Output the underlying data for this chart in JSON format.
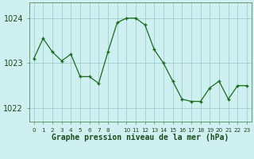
{
  "hours": [
    0,
    1,
    2,
    3,
    4,
    5,
    6,
    7,
    8,
    9,
    10,
    11,
    12,
    13,
    14,
    15,
    16,
    17,
    18,
    19,
    20,
    21,
    22,
    23
  ],
  "pressure": [
    1023.1,
    1023.55,
    1023.25,
    1023.05,
    1023.2,
    1022.7,
    1022.7,
    1022.55,
    1023.25,
    1023.9,
    1024.0,
    1024.0,
    1023.85,
    1023.3,
    1023.0,
    1022.6,
    1022.2,
    1022.15,
    1022.15,
    1022.45,
    1022.6,
    1022.2,
    1022.5,
    1022.5
  ],
  "line_color": "#1a6b1a",
  "marker": "+",
  "bg_color": "#cff0f0",
  "grid_color": "#9ecece",
  "xlabel": "Graphe pression niveau de la mer (hPa)",
  "yticks": [
    1022,
    1023,
    1024
  ],
  "xtick_labels": [
    "0",
    "1",
    "2",
    "3",
    "4",
    "5",
    "6",
    "7",
    "8",
    "",
    "10",
    "11",
    "12",
    "13",
    "14",
    "15",
    "16",
    "17",
    "18",
    "19",
    "20",
    "21",
    "22",
    "23"
  ],
  "ylim": [
    1021.7,
    1024.35
  ],
  "xlim": [
    -0.5,
    23.5
  ],
  "label_bg": "#cff0f0",
  "spine_color": "#5a8a5a",
  "tick_color": "#2a5a2a",
  "xlabel_fontsize": 7.0,
  "ytick_fontsize": 7.0,
  "xtick_fontsize": 5.2
}
